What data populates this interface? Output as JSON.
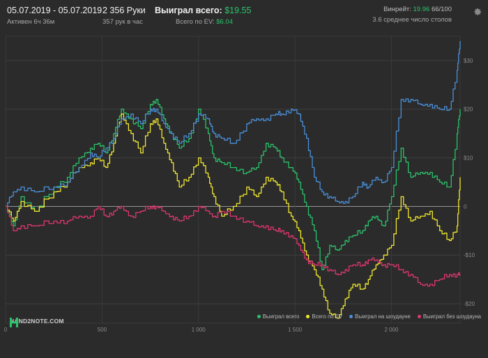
{
  "header": {
    "date_range": "05.07.2019 - 05.07.2019",
    "active": "Активен 6ч 36м",
    "hands": "2 356 Руки",
    "hands_per_hour": "357 рук в час",
    "won_label": "Выиграл всего:",
    "won_value": "$19.55",
    "ev_label": "Всего по EV:",
    "ev_value": "$6.04",
    "winrate_label": "Винрейт:",
    "winrate_value": "19.96",
    "winrate_hands": "66/100",
    "tables": "3.6 среднее число столов"
  },
  "logo": {
    "text": "HAND2NOTE.COM"
  },
  "icons": {
    "settings": "gear-icon",
    "logo": "hand2note-logo-icon"
  },
  "chart_data": {
    "type": "line",
    "x_ticks": [
      0,
      500,
      1000,
      1500,
      2000
    ],
    "y_ticks": [
      -20,
      -10,
      0,
      10,
      20,
      30
    ],
    "xlim": [
      0,
      2356
    ],
    "ylim": [
      -24,
      35
    ],
    "grid": true,
    "legend_position": "bottom-right",
    "series": [
      {
        "name": "Выиграл всего",
        "color": "#29c46a",
        "x": [
          0,
          40,
          80,
          150,
          250,
          320,
          380,
          440,
          480,
          520,
          560,
          600,
          650,
          700,
          750,
          780,
          820,
          860,
          900,
          950,
          1000,
          1050,
          1080,
          1120,
          1180,
          1250,
          1300,
          1350,
          1400,
          1430,
          1480,
          1520,
          1560,
          1600,
          1640,
          1680,
          1720,
          1760,
          1800,
          1850,
          1880,
          1920,
          1960,
          2000,
          2050,
          2100,
          2150,
          2200,
          2250,
          2300,
          2340,
          2356
        ],
        "y": [
          0,
          -4,
          2,
          -1,
          4,
          6,
          10,
          12,
          13,
          11,
          15,
          20,
          18,
          16,
          21,
          22,
          18,
          15,
          12,
          14,
          20,
          15,
          10,
          9,
          8,
          7,
          8,
          13,
          12,
          10,
          8,
          5,
          0,
          -5,
          -13,
          -8,
          -9,
          -7,
          -6,
          -5,
          -3,
          -2,
          -4,
          2,
          12,
          6,
          7,
          7,
          5,
          4,
          15,
          20
        ]
      },
      {
        "name": "Всего по EV",
        "color": "#f2e92e",
        "x": [
          0,
          40,
          80,
          150,
          250,
          320,
          380,
          440,
          480,
          520,
          560,
          600,
          650,
          700,
          750,
          780,
          820,
          860,
          900,
          950,
          1000,
          1050,
          1080,
          1120,
          1180,
          1250,
          1300,
          1350,
          1400,
          1430,
          1480,
          1520,
          1560,
          1600,
          1640,
          1680,
          1720,
          1760,
          1800,
          1850,
          1880,
          1920,
          1960,
          2000,
          2050,
          2100,
          2150,
          2200,
          2250,
          2300,
          2340,
          2356
        ],
        "y": [
          0,
          -3,
          1,
          -1,
          3,
          5,
          8,
          9,
          10,
          8,
          13,
          19,
          15,
          11,
          17,
          18,
          13,
          9,
          4,
          6,
          10,
          6,
          2,
          -2,
          0,
          4,
          2,
          6,
          5,
          3,
          -2,
          -5,
          -10,
          -13,
          -17,
          -22,
          -23,
          -19,
          -16,
          -17,
          -15,
          -12,
          -10,
          -8,
          2,
          -3,
          -2,
          -1,
          -5,
          -7,
          -4,
          6
        ]
      },
      {
        "name": "Выиграл на шоудауне",
        "color": "#4a90d9",
        "x": [
          0,
          40,
          80,
          150,
          250,
          320,
          380,
          440,
          480,
          520,
          560,
          600,
          650,
          700,
          750,
          780,
          820,
          860,
          900,
          950,
          1000,
          1050,
          1080,
          1120,
          1180,
          1250,
          1300,
          1350,
          1400,
          1430,
          1480,
          1520,
          1560,
          1600,
          1640,
          1680,
          1720,
          1760,
          1800,
          1850,
          1880,
          1920,
          1960,
          2000,
          2050,
          2100,
          2150,
          2200,
          2250,
          2300,
          2340,
          2356
        ],
        "y": [
          0,
          3,
          4,
          3,
          4,
          5,
          8,
          11,
          10,
          12,
          14,
          18,
          19,
          17,
          20,
          20,
          17,
          15,
          13,
          15,
          19,
          18,
          15,
          14,
          13,
          17,
          18,
          18,
          19,
          19,
          20,
          19,
          14,
          6,
          3,
          2,
          1,
          1,
          2,
          5,
          4,
          6,
          5,
          8,
          22,
          22,
          21,
          21,
          20,
          20,
          28,
          34
        ]
      },
      {
        "name": "Выиграл без шоудауна",
        "color": "#e0366f",
        "x": [
          0,
          40,
          80,
          150,
          250,
          320,
          380,
          440,
          480,
          520,
          560,
          600,
          650,
          700,
          750,
          780,
          820,
          860,
          900,
          950,
          1000,
          1050,
          1080,
          1120,
          1180,
          1250,
          1300,
          1350,
          1400,
          1430,
          1480,
          1520,
          1560,
          1600,
          1640,
          1680,
          1720,
          1760,
          1800,
          1850,
          1880,
          1920,
          1960,
          2000,
          2050,
          2100,
          2150,
          2200,
          2250,
          2300,
          2340,
          2356
        ],
        "y": [
          0,
          -5,
          -4,
          -4,
          -3,
          -3,
          -2,
          -2,
          0,
          -2,
          -1,
          0,
          -2,
          -1,
          0,
          0,
          -1,
          -2,
          -3,
          -2,
          0,
          -1,
          -2,
          -1,
          -2,
          -3,
          -4,
          -4,
          -5,
          -5,
          -6,
          -8,
          -11,
          -12,
          -12,
          -13,
          -14,
          -13,
          -12,
          -12,
          -11,
          -11,
          -12,
          -12,
          -13,
          -14,
          -16,
          -16,
          -15,
          -14,
          -14,
          -14
        ]
      }
    ]
  }
}
